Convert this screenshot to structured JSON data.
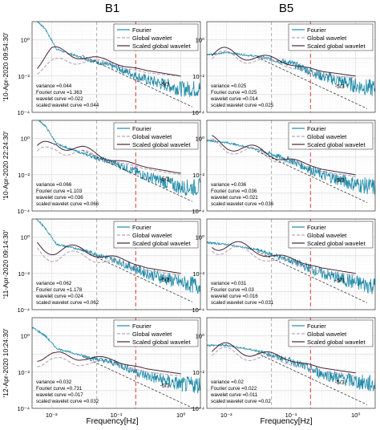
{
  "columns": [
    {
      "title": "B1"
    },
    {
      "title": "B5"
    }
  ],
  "rows": [
    {
      "date_label": "'10-Apr-2020 09:54:30'"
    },
    {
      "date_label": "'10-Apr-2020 22:24:30'"
    },
    {
      "date_label": "'11-Apr-2020 09:14:30'"
    },
    {
      "date_label": "'12-Apr-2020 10:24:30'"
    }
  ],
  "legend": {
    "fourier": "Fourier",
    "global": "Global wavelet",
    "scaled": "Scaled global wavelet"
  },
  "slope_label": "-5/3",
  "xlabel": "Frequency[Hz]",
  "x_ticks": [
    "10⁻²",
    "10⁻¹",
    "10⁰"
  ],
  "y_ticks": [
    "10⁰",
    "10⁻²",
    "10⁻⁴"
  ],
  "colors": {
    "fourier": "#1f8aa8",
    "global": "#b9a6be",
    "scaled": "#4a2535",
    "slope": "#222222",
    "red_vline": "#e03a3a",
    "grey_vline": "#999999"
  },
  "chart_data": {
    "type": "line",
    "x_scale": "log",
    "y_scale": "log",
    "xlim": [
      0.005,
      2
    ],
    "ylim": [
      0.0001,
      10
    ],
    "vertical_lines_hz": {
      "grey": 0.05,
      "red": 0.2
    },
    "panels": [
      {
        "column": "B1",
        "row": "'10-Apr-2020 09:54:30'",
        "stats": [
          "variance =0.044",
          "Fourier curve =1.363",
          "wavelet curve =0.022",
          "scaled wavelet curve =0.044"
        ],
        "fourier_anchor": [
          [
            0.005,
            20
          ],
          [
            0.008,
            4
          ],
          [
            0.012,
            0.3
          ],
          [
            0.03,
            0.1
          ],
          [
            0.1,
            0.03
          ],
          [
            0.3,
            0.006
          ],
          [
            1,
            0.002
          ],
          [
            2,
            0.002
          ]
        ],
        "global_anchor": [
          [
            0.006,
            0.03
          ],
          [
            0.012,
            0.045
          ],
          [
            0.03,
            0.09
          ],
          [
            0.06,
            0.05
          ],
          [
            0.1,
            0.04
          ],
          [
            0.3,
            0.015
          ],
          [
            1,
            0.01
          ]
        ],
        "scaled_anchor": [
          [
            0.006,
            0.06
          ],
          [
            0.01,
            0.2
          ],
          [
            0.03,
            0.15
          ],
          [
            0.06,
            0.07
          ],
          [
            0.1,
            0.05
          ],
          [
            0.3,
            0.02
          ],
          [
            1,
            0.01
          ]
        ]
      },
      {
        "column": "B5",
        "row": "'10-Apr-2020 09:54:30'",
        "stats": [
          "variance =0.025",
          "Fourier curve =0.025",
          "wavelet curve =0.014",
          "scaled wavelet curve =0.025"
        ],
        "fourier_anchor": [
          [
            0.005,
            0.15
          ],
          [
            0.01,
            0.2
          ],
          [
            0.03,
            0.12
          ],
          [
            0.1,
            0.05
          ],
          [
            0.3,
            0.01
          ],
          [
            1,
            0.003
          ],
          [
            2,
            0.002
          ]
        ],
        "global_anchor": [
          [
            0.006,
            0.1
          ],
          [
            0.012,
            0.12
          ],
          [
            0.03,
            0.08
          ],
          [
            0.06,
            0.05
          ],
          [
            0.1,
            0.035
          ],
          [
            0.3,
            0.012
          ],
          [
            1,
            0.008
          ]
        ],
        "scaled_anchor": [
          [
            0.006,
            0.15
          ],
          [
            0.012,
            0.18
          ],
          [
            0.03,
            0.12
          ],
          [
            0.06,
            0.07
          ],
          [
            0.1,
            0.05
          ],
          [
            0.3,
            0.018
          ],
          [
            1,
            0.01
          ]
        ]
      },
      {
        "column": "B1",
        "row": "'10-Apr-2020 22:24:30'",
        "stats": [
          "variance =0.066",
          "Fourier curve =1.103",
          "wavelet curve =0.036",
          "scaled wavelet curve =0.066"
        ],
        "fourier_anchor": [
          [
            0.005,
            20
          ],
          [
            0.008,
            5
          ],
          [
            0.012,
            0.5
          ],
          [
            0.03,
            0.15
          ],
          [
            0.1,
            0.04
          ],
          [
            0.3,
            0.008
          ],
          [
            1,
            0.002
          ],
          [
            2,
            0.002
          ]
        ],
        "global_anchor": [
          [
            0.006,
            0.1
          ],
          [
            0.012,
            0.3
          ],
          [
            0.03,
            0.15
          ],
          [
            0.06,
            0.07
          ],
          [
            0.1,
            0.05
          ],
          [
            0.3,
            0.02
          ],
          [
            1,
            0.01
          ]
        ],
        "scaled_anchor": [
          [
            0.006,
            0.2
          ],
          [
            0.012,
            0.6
          ],
          [
            0.03,
            0.25
          ],
          [
            0.06,
            0.1
          ],
          [
            0.1,
            0.07
          ],
          [
            0.3,
            0.025
          ],
          [
            1,
            0.012
          ]
        ]
      },
      {
        "column": "B5",
        "row": "'10-Apr-2020 22:24:30'",
        "stats": [
          "variance =0.036",
          "Fourier curve =0.036",
          "wavelet curve =0.021",
          "scaled wavelet curve =0.036"
        ],
        "fourier_anchor": [
          [
            0.005,
            0.8
          ],
          [
            0.01,
            0.6
          ],
          [
            0.03,
            0.25
          ],
          [
            0.1,
            0.06
          ],
          [
            0.3,
            0.01
          ],
          [
            1,
            0.003
          ],
          [
            2,
            0.002
          ]
        ],
        "global_anchor": [
          [
            0.006,
            0.4
          ],
          [
            0.012,
            0.3
          ],
          [
            0.03,
            0.15
          ],
          [
            0.06,
            0.07
          ],
          [
            0.1,
            0.05
          ],
          [
            0.3,
            0.015
          ],
          [
            1,
            0.008
          ]
        ],
        "scaled_anchor": [
          [
            0.006,
            0.6
          ],
          [
            0.012,
            0.45
          ],
          [
            0.03,
            0.22
          ],
          [
            0.06,
            0.1
          ],
          [
            0.1,
            0.07
          ],
          [
            0.3,
            0.02
          ],
          [
            1,
            0.01
          ]
        ]
      },
      {
        "column": "B1",
        "row": "'11-Apr-2020 09:14:30'",
        "stats": [
          "variance =0.062",
          "Fourier curve =1.178",
          "wavelet curve =0.024",
          "scaled wavelet curve =0.062"
        ],
        "fourier_anchor": [
          [
            0.005,
            20
          ],
          [
            0.008,
            3
          ],
          [
            0.012,
            0.4
          ],
          [
            0.03,
            0.2
          ],
          [
            0.1,
            0.05
          ],
          [
            0.3,
            0.01
          ],
          [
            1,
            0.003
          ],
          [
            2,
            0.002
          ]
        ],
        "global_anchor": [
          [
            0.006,
            0.2
          ],
          [
            0.012,
            0.08
          ],
          [
            0.03,
            0.1
          ],
          [
            0.06,
            0.05
          ],
          [
            0.1,
            0.04
          ],
          [
            0.3,
            0.015
          ],
          [
            1,
            0.008
          ]
        ],
        "scaled_anchor": [
          [
            0.006,
            0.4
          ],
          [
            0.012,
            0.2
          ],
          [
            0.03,
            0.2
          ],
          [
            0.06,
            0.1
          ],
          [
            0.1,
            0.07
          ],
          [
            0.3,
            0.02
          ],
          [
            1,
            0.01
          ]
        ]
      },
      {
        "column": "B5",
        "row": "'11-Apr-2020 09:14:30'",
        "stats": [
          "variance =0.031",
          "Fourier curve =0.03",
          "wavelet curve =0.016",
          "scaled wavelet curve =0.031"
        ],
        "fourier_anchor": [
          [
            0.005,
            0.5
          ],
          [
            0.01,
            0.4
          ],
          [
            0.03,
            0.2
          ],
          [
            0.1,
            0.05
          ],
          [
            0.3,
            0.01
          ],
          [
            1,
            0.003
          ],
          [
            2,
            0.002
          ]
        ],
        "global_anchor": [
          [
            0.006,
            0.3
          ],
          [
            0.012,
            0.2
          ],
          [
            0.03,
            0.1
          ],
          [
            0.06,
            0.05
          ],
          [
            0.1,
            0.04
          ],
          [
            0.3,
            0.012
          ],
          [
            1,
            0.008
          ]
        ],
        "scaled_anchor": [
          [
            0.006,
            0.5
          ],
          [
            0.012,
            0.35
          ],
          [
            0.03,
            0.18
          ],
          [
            0.06,
            0.09
          ],
          [
            0.1,
            0.06
          ],
          [
            0.3,
            0.02
          ],
          [
            1,
            0.01
          ]
        ]
      },
      {
        "column": "B1",
        "row": "'12-Apr-2020 10:24:30'",
        "stats": [
          "variance =0.032",
          "Fourier curve =0.731",
          "wavelet curve =0.017",
          "scaled wavelet curve =0.032"
        ],
        "fourier_anchor": [
          [
            0.005,
            3
          ],
          [
            0.008,
            1
          ],
          [
            0.012,
            0.2
          ],
          [
            0.03,
            0.08
          ],
          [
            0.1,
            0.03
          ],
          [
            0.3,
            0.006
          ],
          [
            1,
            0.002
          ],
          [
            2,
            0.002
          ]
        ],
        "global_anchor": [
          [
            0.006,
            0.05
          ],
          [
            0.012,
            0.03
          ],
          [
            0.03,
            0.04
          ],
          [
            0.06,
            0.03
          ],
          [
            0.1,
            0.025
          ],
          [
            0.3,
            0.01
          ],
          [
            1,
            0.006
          ]
        ],
        "scaled_anchor": [
          [
            0.006,
            0.1
          ],
          [
            0.012,
            0.06
          ],
          [
            0.03,
            0.08
          ],
          [
            0.06,
            0.05
          ],
          [
            0.1,
            0.04
          ],
          [
            0.3,
            0.015
          ],
          [
            1,
            0.008
          ]
        ]
      },
      {
        "column": "B5",
        "row": "'12-Apr-2020 10:24:30'",
        "stats": [
          "variance =0.02",
          "Fourier curve =0.022",
          "wavelet curve =0.011",
          "scaled wavelet curve =0.02"
        ],
        "fourier_anchor": [
          [
            0.005,
            0.3
          ],
          [
            0.01,
            0.3
          ],
          [
            0.03,
            0.15
          ],
          [
            0.1,
            0.04
          ],
          [
            0.3,
            0.008
          ],
          [
            1,
            0.003
          ],
          [
            2,
            0.002
          ]
        ],
        "global_anchor": [
          [
            0.006,
            0.12
          ],
          [
            0.012,
            0.1
          ],
          [
            0.03,
            0.07
          ],
          [
            0.06,
            0.04
          ],
          [
            0.1,
            0.03
          ],
          [
            0.3,
            0.01
          ],
          [
            1,
            0.006
          ]
        ],
        "scaled_anchor": [
          [
            0.006,
            0.2
          ],
          [
            0.012,
            0.18
          ],
          [
            0.03,
            0.12
          ],
          [
            0.06,
            0.07
          ],
          [
            0.1,
            0.05
          ],
          [
            0.3,
            0.017
          ],
          [
            1,
            0.009
          ]
        ]
      }
    ]
  }
}
